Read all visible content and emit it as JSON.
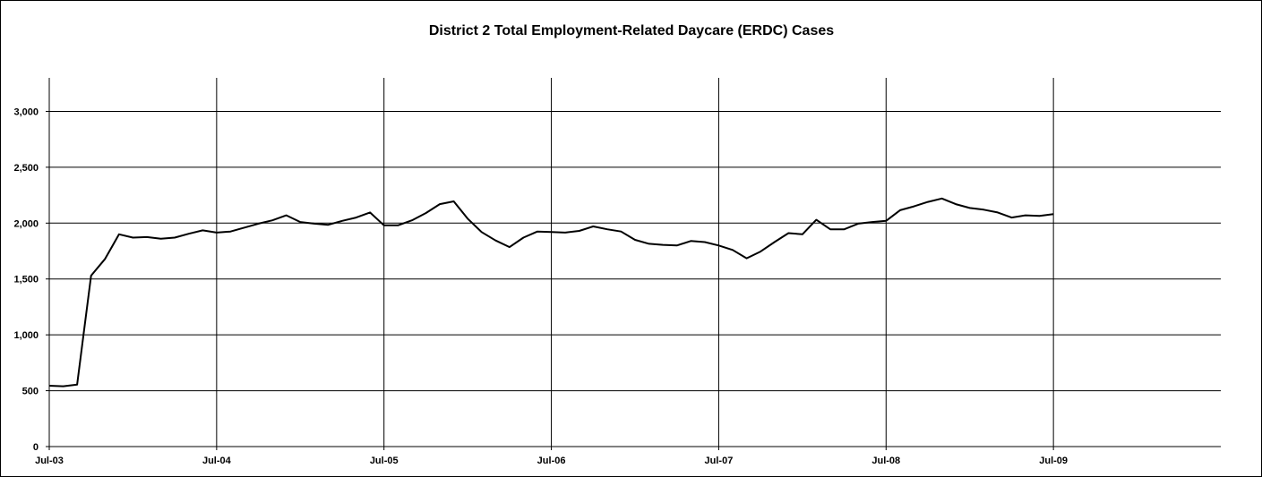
{
  "chart_data": {
    "type": "line",
    "title": "District 2 Total Employment-Related Daycare (ERDC) Cases",
    "xlabel": "",
    "ylabel": "",
    "ylim": [
      0,
      3300
    ],
    "y_ticks": [
      0,
      500,
      1000,
      1500,
      2000,
      2500,
      3000
    ],
    "y_tick_labels": [
      "0",
      "500",
      "1,000",
      "1,500",
      "2,000",
      "2,500",
      "3,000"
    ],
    "x_tick_labels": [
      "Jul-03",
      "Jul-04",
      "Jul-05",
      "Jul-06",
      "Jul-07",
      "Jul-08",
      "Jul-09"
    ],
    "x_range_months": [
      0,
      84
    ],
    "grid": true,
    "line_color": "#000000",
    "series": [
      {
        "values": [
          545,
          540,
          555,
          1530,
          1680,
          1900,
          1870,
          1875,
          1860,
          1870,
          1905,
          1935,
          1915,
          1925,
          1960,
          1995,
          2025,
          2070,
          2010,
          1995,
          1985,
          2020,
          2050,
          2095,
          1980,
          1980,
          2025,
          2090,
          2170,
          2195,
          2040,
          1920,
          1845,
          1785,
          1870,
          1925,
          1920,
          1915,
          1930,
          1970,
          1945,
          1925,
          1850,
          1815,
          1805,
          1800,
          1840,
          1830,
          1800,
          1760,
          1685,
          1745,
          1830,
          1910,
          1900,
          2030,
          1945,
          1945,
          1995,
          2010,
          2020,
          2115,
          2150,
          2190,
          2220,
          2170,
          2135,
          2120,
          2095,
          2050,
          2070,
          2065,
          2080
        ]
      }
    ]
  }
}
